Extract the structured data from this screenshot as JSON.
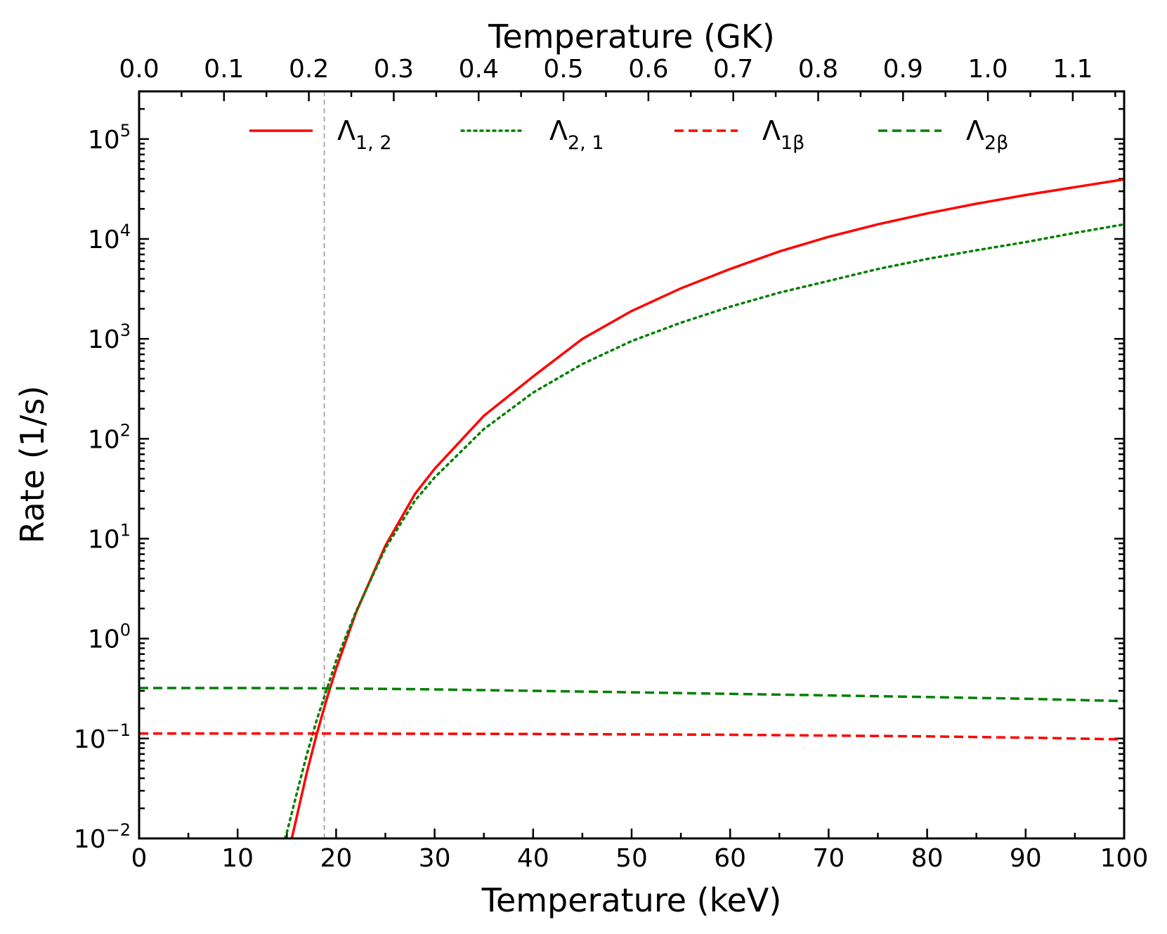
{
  "chart_data": {
    "type": "line",
    "xlabel": "Temperature (keV)",
    "ylabel": "Rate (1/s)",
    "top_xlabel": "Temperature (GK)",
    "xlim": [
      0,
      100
    ],
    "ylim": [
      0.01,
      300000
    ],
    "yscale": "log",
    "top_xlim_gk": [
      0,
      1.1605
    ],
    "x_ticks": [
      "0",
      "10",
      "20",
      "30",
      "40",
      "50",
      "60",
      "70",
      "80",
      "90",
      "100"
    ],
    "top_ticks": [
      "0.0",
      "0.1",
      "0.2",
      "0.3",
      "0.4",
      "0.5",
      "0.6",
      "0.7",
      "0.8",
      "0.9",
      "1.0",
      "1.1"
    ],
    "y_ticks": [
      {
        "base": "10",
        "exp": "−2"
      },
      {
        "base": "10",
        "exp": "−1"
      },
      {
        "base": "10",
        "exp": "0"
      },
      {
        "base": "10",
        "exp": "1"
      },
      {
        "base": "10",
        "exp": "2"
      },
      {
        "base": "10",
        "exp": "3"
      },
      {
        "base": "10",
        "exp": "4"
      },
      {
        "base": "10",
        "exp": "5"
      }
    ],
    "vline_x": 18.8,
    "grid": false,
    "legend_position": "top",
    "series": [
      {
        "label": "Λ",
        "sub": "1, 2",
        "color": "#ff0000",
        "style": "solid",
        "x": [
          15.5,
          16,
          17,
          18,
          19,
          20,
          22,
          25,
          28,
          30,
          35,
          40,
          45,
          50,
          55,
          60,
          65,
          70,
          75,
          80,
          85,
          90,
          95,
          100
        ],
        "y": [
          0.01,
          0.0164,
          0.0444,
          0.108,
          0.24,
          0.5,
          1.8,
          8.5,
          28,
          50,
          170,
          420,
          1000,
          1900,
          3200,
          5000,
          7500,
          10500,
          14000,
          18000,
          22500,
          27500,
          33000,
          39500
        ]
      },
      {
        "label": "Λ",
        "sub": "2, 1",
        "color": "#008000",
        "style": "dotted",
        "x": [
          14.8,
          15,
          16,
          17,
          18,
          19,
          20,
          22,
          25,
          28,
          30,
          35,
          40,
          45,
          50,
          55,
          60,
          65,
          70,
          75,
          80,
          85,
          90,
          95,
          100
        ],
        "y": [
          0.01,
          0.0115,
          0.0281,
          0.0674,
          0.15,
          0.3,
          0.6,
          1.85,
          8.0,
          24,
          41,
          125,
          290,
          560,
          950,
          1450,
          2100,
          2900,
          3800,
          5000,
          6300,
          7700,
          9300,
          11500,
          14000
        ]
      },
      {
        "label": "Λ",
        "sub": "1β",
        "color": "#ff0000",
        "style": "dashed",
        "x": [
          0,
          20,
          40,
          60,
          80,
          90,
          100
        ],
        "y": [
          0.112,
          0.112,
          0.111,
          0.109,
          0.105,
          0.102,
          0.098
        ]
      },
      {
        "label": "Λ",
        "sub": "2β",
        "color": "#008000",
        "style": "dashed",
        "x": [
          0,
          10,
          20,
          30,
          40,
          50,
          60,
          70,
          80,
          90,
          100
        ],
        "y": [
          0.32,
          0.32,
          0.318,
          0.31,
          0.3,
          0.29,
          0.28,
          0.27,
          0.26,
          0.25,
          0.237
        ]
      }
    ]
  }
}
